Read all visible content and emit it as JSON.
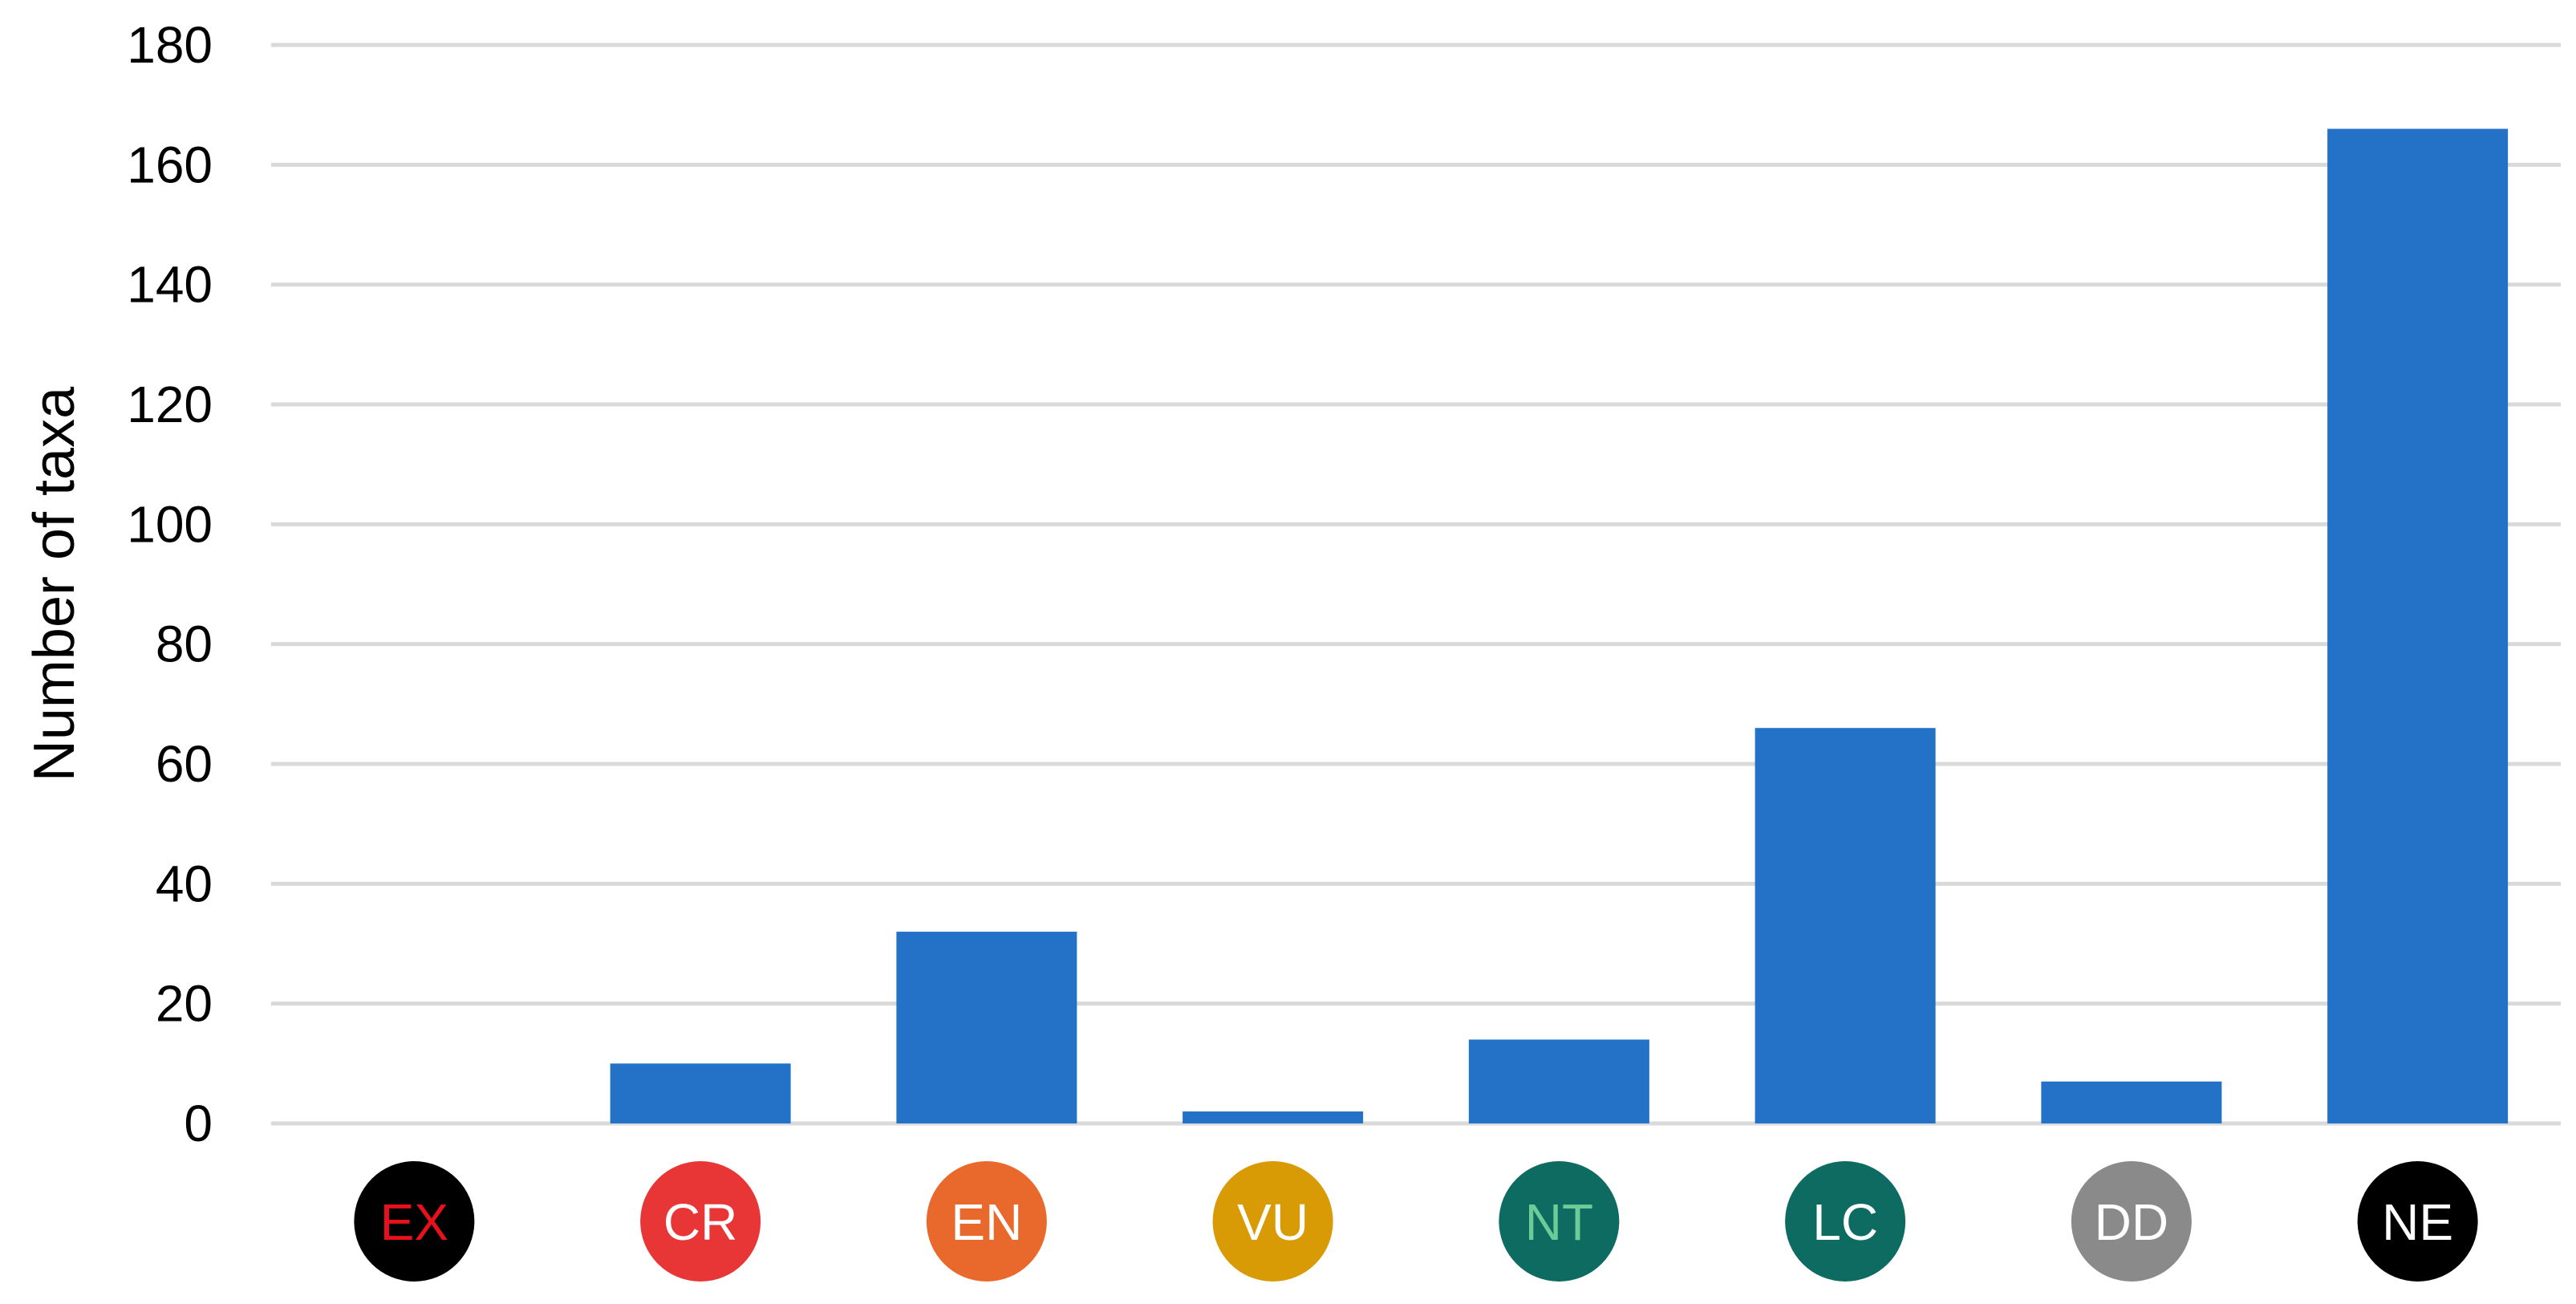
{
  "chart_data": {
    "type": "bar",
    "title": "",
    "xlabel": "",
    "ylabel": "Number of taxa",
    "ylim": [
      0,
      180
    ],
    "yticks": [
      "0",
      "20",
      "40",
      "60",
      "80",
      "100",
      "120",
      "140",
      "160",
      "180"
    ],
    "grid": true,
    "legend": "none",
    "bar_color": "#2372c8",
    "grid_color": "#d9d9d9",
    "categories": [
      "EX",
      "CR",
      "EN",
      "VU",
      "NT",
      "LC",
      "DD",
      "NE"
    ],
    "values": [
      0,
      10,
      32,
      2,
      14,
      66,
      7,
      166
    ],
    "category_badges": [
      {
        "label": "EX",
        "fill": "#000000",
        "text_color": "#e8101b"
      },
      {
        "label": "CR",
        "fill": "#e83535",
        "text_color": "#ffffff"
      },
      {
        "label": "EN",
        "fill": "#e9682c",
        "text_color": "#ffffff"
      },
      {
        "label": "VU",
        "fill": "#d89a05",
        "text_color": "#ffffff"
      },
      {
        "label": "NT",
        "fill": "#0d6b61",
        "text_color": "#6ccb97"
      },
      {
        "label": "LC",
        "fill": "#0d6b61",
        "text_color": "#ffffff"
      },
      {
        "label": "DD",
        "fill": "#8a8a8a",
        "text_color": "#ffffff"
      },
      {
        "label": "NE",
        "fill": "#000000",
        "text_color": "#ffffff"
      }
    ]
  }
}
